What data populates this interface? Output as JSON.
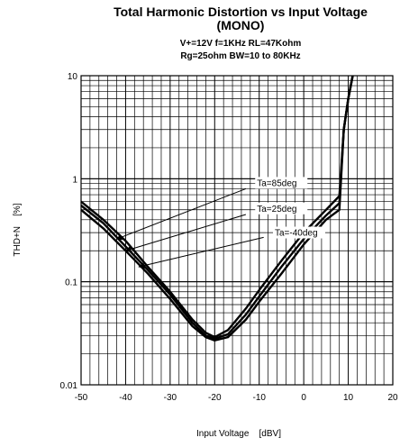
{
  "chart_data": {
    "type": "line",
    "title": "Total Harmonic Distortion vs Input Voltage",
    "title_line2": "(MONO)",
    "subtitle_line1": "V+=12V f=1KHz RL=47Kohm",
    "subtitle_line2": "Rg=25ohm BW=10 to 80KHz",
    "xlabel": "Input Voltage    [dBV]",
    "ylabel": "THD+N    [%]",
    "xlim": [
      -50,
      20
    ],
    "ylim": [
      0.01,
      10
    ],
    "yscale": "log",
    "grid": true,
    "x_ticks": [
      "-50",
      "-40",
      "-30",
      "-20",
      "-10",
      "0",
      "10",
      "20"
    ],
    "y_ticks": [
      "0.01",
      "0.1",
      "1",
      "10"
    ],
    "series": [
      {
        "name": "Ta=85deg",
        "x": [
          -50,
          -45,
          -40,
          -35,
          -30,
          -25,
          -22,
          -20,
          -17,
          -13,
          -10,
          -5,
          0,
          5,
          8,
          9,
          10,
          11
        ],
        "y": [
          0.6,
          0.4,
          0.25,
          0.14,
          0.08,
          0.043,
          0.032,
          0.029,
          0.034,
          0.055,
          0.083,
          0.16,
          0.3,
          0.5,
          0.68,
          3.0,
          6.0,
          10.0
        ]
      },
      {
        "name": "Ta=25deg",
        "x": [
          -50,
          -45,
          -40,
          -35,
          -30,
          -25,
          -22,
          -20,
          -17,
          -13,
          -10,
          -5,
          0,
          5,
          8,
          9,
          10,
          11
        ],
        "y": [
          0.55,
          0.37,
          0.22,
          0.13,
          0.075,
          0.04,
          0.03,
          0.028,
          0.031,
          0.048,
          0.072,
          0.14,
          0.26,
          0.44,
          0.58,
          3.0,
          6.0,
          10.0
        ]
      },
      {
        "name": "Ta=-40deg",
        "x": [
          -50,
          -45,
          -40,
          -35,
          -30,
          -25,
          -22,
          -20,
          -17,
          -13,
          -10,
          -5,
          0,
          5,
          8,
          9,
          10,
          11
        ],
        "y": [
          0.5,
          0.33,
          0.2,
          0.12,
          0.068,
          0.037,
          0.029,
          0.027,
          0.029,
          0.043,
          0.064,
          0.12,
          0.23,
          0.4,
          0.5,
          3.0,
          6.0,
          10.0
        ]
      }
    ],
    "annotations": [
      {
        "text": "Ta=85deg",
        "target_series": "Ta=85deg"
      },
      {
        "text": "Ta=25deg",
        "target_series": "Ta=25deg"
      },
      {
        "text": "Ta=-40deg",
        "target_series": "Ta=-40deg"
      }
    ]
  }
}
